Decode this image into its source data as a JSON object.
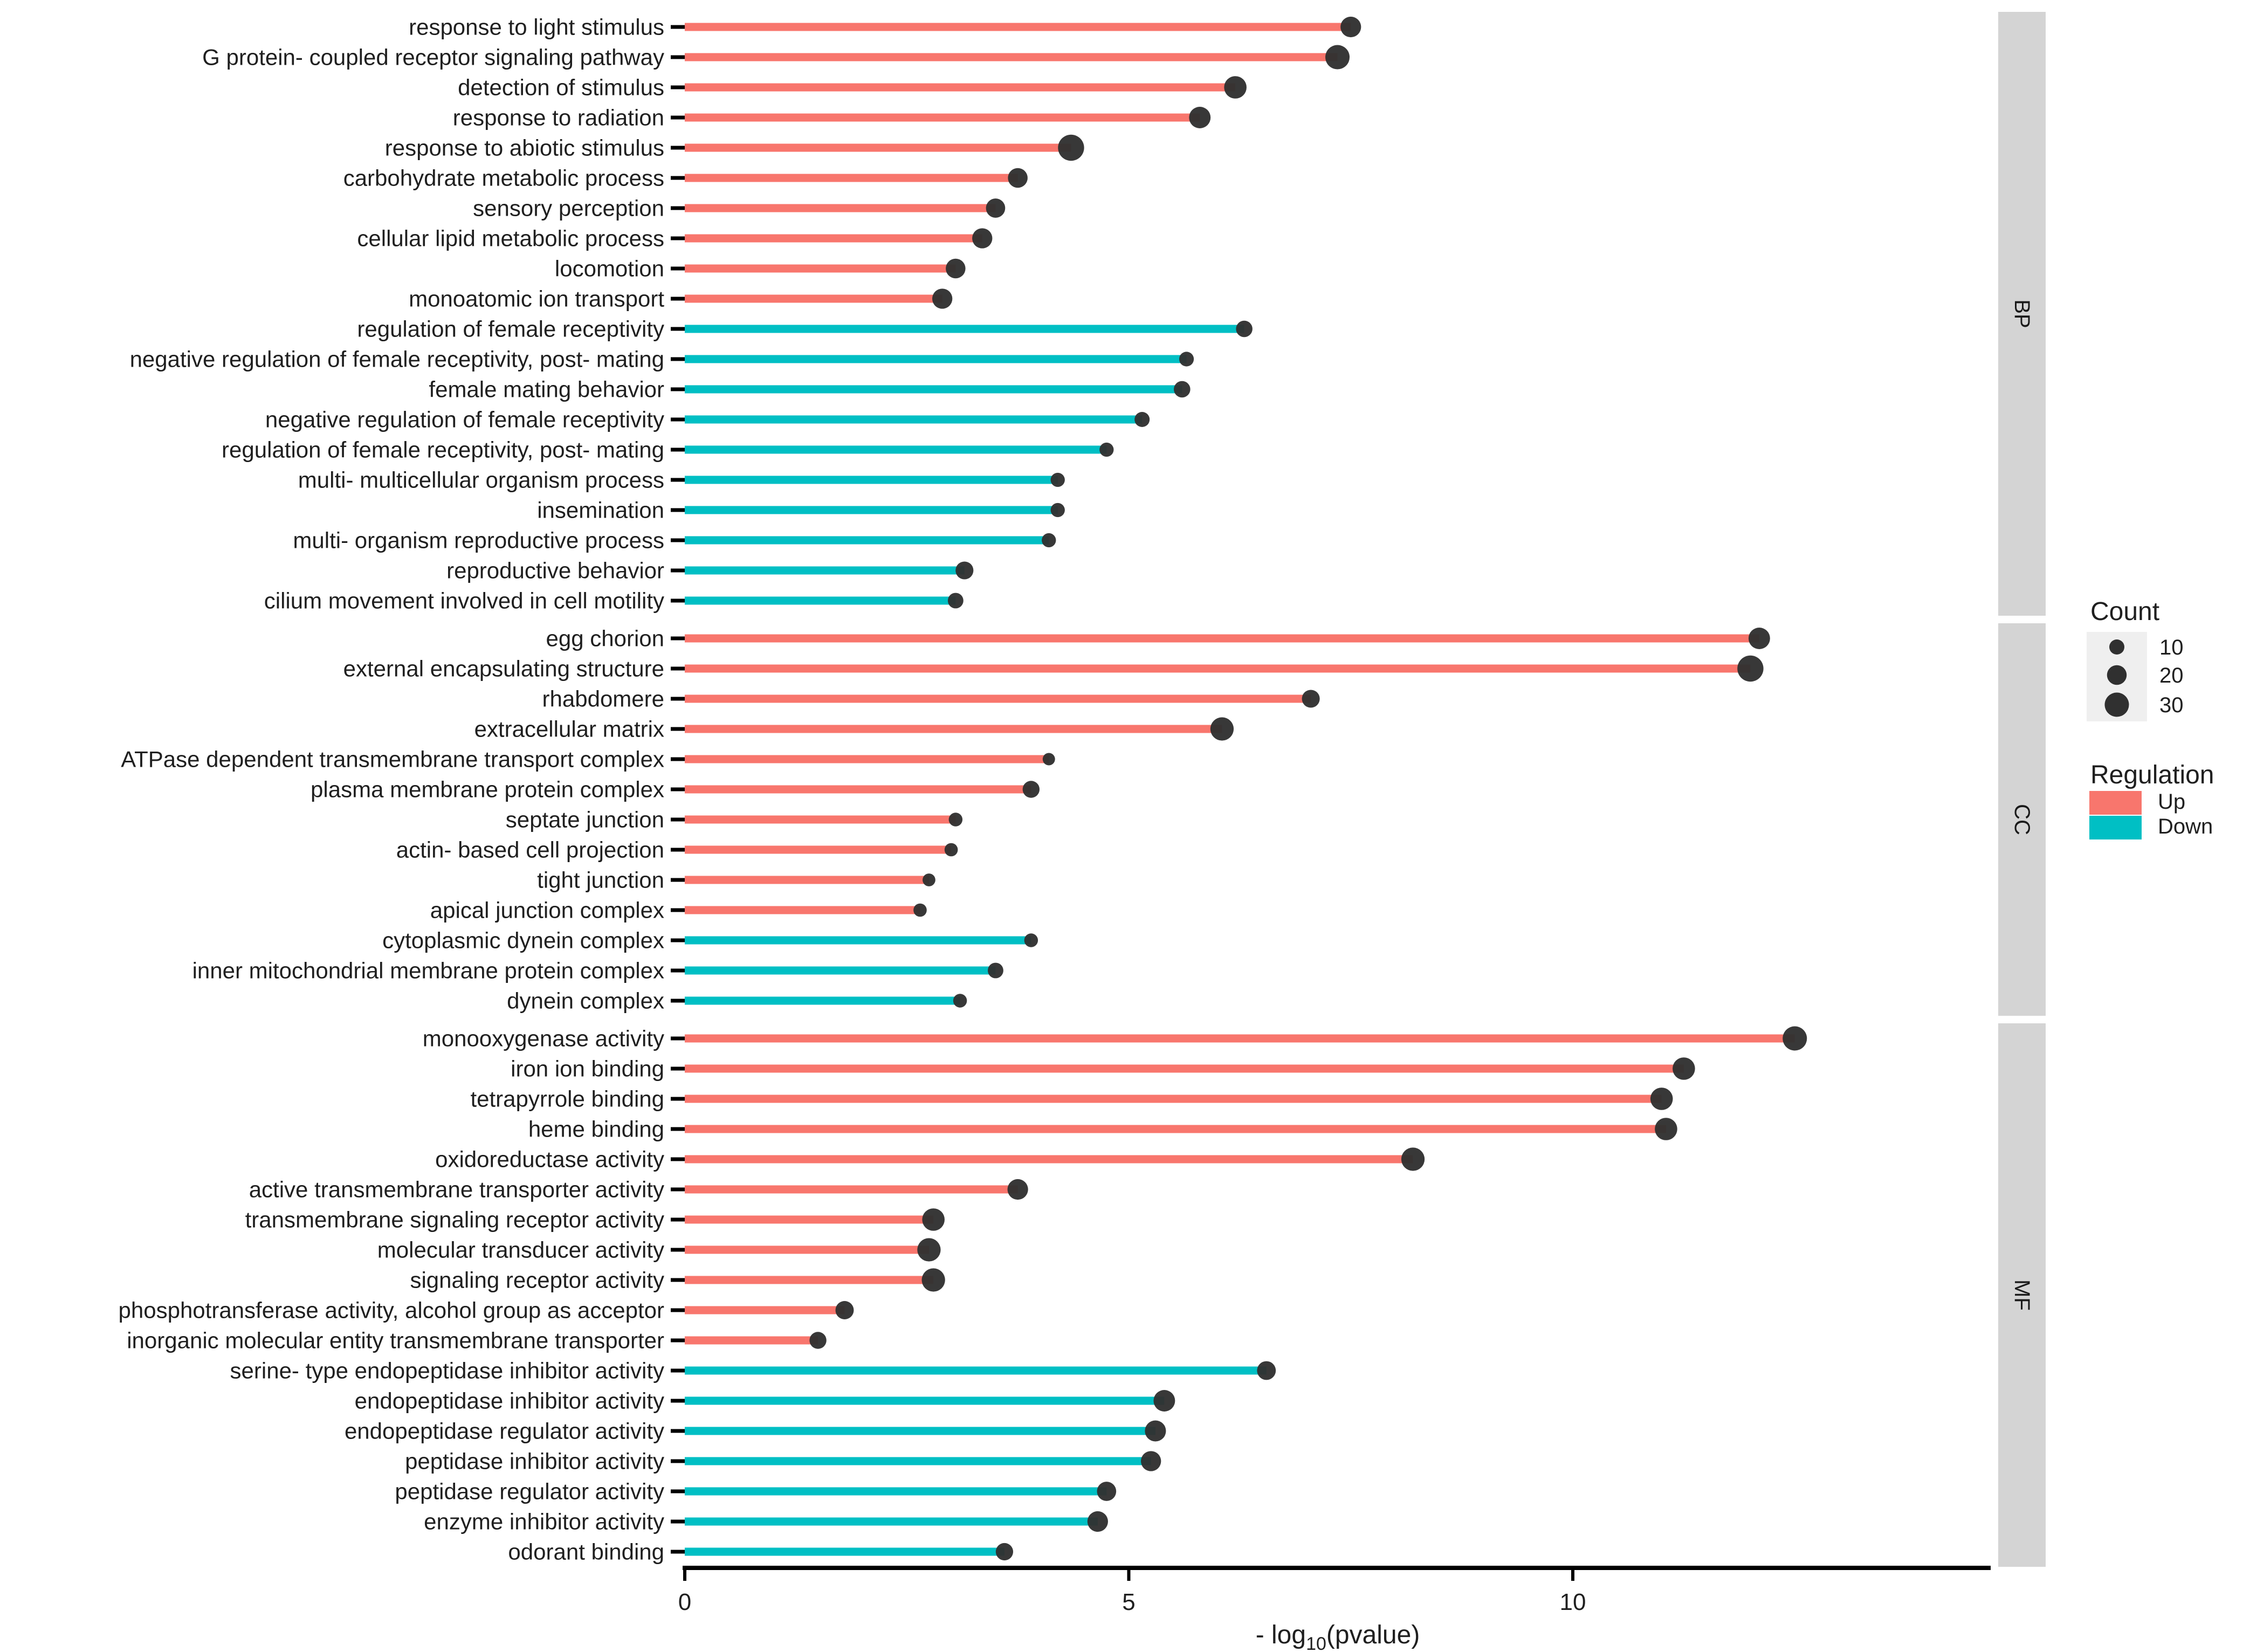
{
  "chart_data": {
    "type": "bar",
    "subtype": "horizontal-lollipop",
    "title": "",
    "xlabel_prefix": "- log",
    "xlabel_sub": "10",
    "xlabel_suffix": "(pvalue)",
    "xlim": [
      0,
      14.7
    ],
    "x_ticks": [
      0,
      5,
      10
    ],
    "grid": false,
    "legend_position": "right",
    "facets": [
      {
        "label": "BP",
        "rows": [
          {
            "label": "response to light stimulus",
            "value": 7.5,
            "count": 22,
            "regulation": "Up"
          },
          {
            "label": "G protein- coupled receptor signaling pathway",
            "value": 7.35,
            "count": 30,
            "regulation": "Up"
          },
          {
            "label": "detection of stimulus",
            "value": 6.2,
            "count": 26,
            "regulation": "Up"
          },
          {
            "label": "response to radiation",
            "value": 5.8,
            "count": 24,
            "regulation": "Up"
          },
          {
            "label": "response to abiotic stimulus",
            "value": 4.35,
            "count": 34,
            "regulation": "Up"
          },
          {
            "label": "carbohydrate metabolic process",
            "value": 3.75,
            "count": 20,
            "regulation": "Up"
          },
          {
            "label": "sensory perception",
            "value": 3.5,
            "count": 19,
            "regulation": "Up"
          },
          {
            "label": "cellular lipid metabolic process",
            "value": 3.35,
            "count": 21,
            "regulation": "Up"
          },
          {
            "label": "locomotion",
            "value": 3.05,
            "count": 20,
            "regulation": "Up"
          },
          {
            "label": "monoatomic ion transport",
            "value": 2.9,
            "count": 21,
            "regulation": "Up"
          },
          {
            "label": "regulation of female receptivity",
            "value": 6.3,
            "count": 13,
            "regulation": "Down"
          },
          {
            "label": "negative regulation of female receptivity, post- mating",
            "value": 5.65,
            "count": 9,
            "regulation": "Down"
          },
          {
            "label": "female mating behavior",
            "value": 5.6,
            "count": 13,
            "regulation": "Down"
          },
          {
            "label": "negative regulation of female receptivity",
            "value": 5.15,
            "count": 10,
            "regulation": "Down"
          },
          {
            "label": "regulation of female receptivity, post- mating",
            "value": 4.75,
            "count": 8,
            "regulation": "Down"
          },
          {
            "label": "multi- multicellular organism process",
            "value": 4.2,
            "count": 8,
            "regulation": "Down"
          },
          {
            "label": "insemination",
            "value": 4.2,
            "count": 8,
            "regulation": "Down"
          },
          {
            "label": "multi- organism reproductive process",
            "value": 4.1,
            "count": 8,
            "regulation": "Down"
          },
          {
            "label": "reproductive behavior",
            "value": 3.15,
            "count": 16,
            "regulation": "Down"
          },
          {
            "label": "cilium movement involved in cell motility",
            "value": 3.05,
            "count": 11,
            "regulation": "Down"
          }
        ]
      },
      {
        "label": "CC",
        "rows": [
          {
            "label": "egg chorion",
            "value": 12.1,
            "count": 24,
            "regulation": "Up"
          },
          {
            "label": "external encapsulating structure",
            "value": 12.0,
            "count": 34,
            "regulation": "Up"
          },
          {
            "label": "rhabdomere",
            "value": 7.05,
            "count": 16,
            "regulation": "Up"
          },
          {
            "label": "extracellular matrix",
            "value": 6.05,
            "count": 28,
            "regulation": "Up"
          },
          {
            "label": "ATPase dependent transmembrane transport complex",
            "value": 4.1,
            "count": 4,
            "regulation": "Up"
          },
          {
            "label": "plasma membrane protein complex",
            "value": 3.9,
            "count": 14,
            "regulation": "Up"
          },
          {
            "label": "septate junction",
            "value": 3.05,
            "count": 7,
            "regulation": "Up"
          },
          {
            "label": "actin- based cell projection",
            "value": 3.0,
            "count": 6,
            "regulation": "Up"
          },
          {
            "label": "tight junction",
            "value": 2.75,
            "count": 5,
            "regulation": "Up"
          },
          {
            "label": "apical junction complex",
            "value": 2.65,
            "count": 6,
            "regulation": "Up"
          },
          {
            "label": "cytoplasmic dynein complex",
            "value": 3.9,
            "count": 7,
            "regulation": "Down"
          },
          {
            "label": "inner mitochondrial membrane protein complex",
            "value": 3.5,
            "count": 11,
            "regulation": "Down"
          },
          {
            "label": "dynein complex",
            "value": 3.1,
            "count": 7,
            "regulation": "Down"
          }
        ]
      },
      {
        "label": "MF",
        "rows": [
          {
            "label": "monooxygenase activity",
            "value": 12.5,
            "count": 30,
            "regulation": "Up"
          },
          {
            "label": "iron ion binding",
            "value": 11.25,
            "count": 26,
            "regulation": "Up"
          },
          {
            "label": "tetrapyrrole binding",
            "value": 11.0,
            "count": 26,
            "regulation": "Up"
          },
          {
            "label": "heme binding",
            "value": 11.05,
            "count": 26,
            "regulation": "Up"
          },
          {
            "label": "oxidoreductase activity",
            "value": 8.2,
            "count": 28,
            "regulation": "Up"
          },
          {
            "label": "active transmembrane transporter activity",
            "value": 3.75,
            "count": 22,
            "regulation": "Up"
          },
          {
            "label": "transmembrane signaling receptor activity",
            "value": 2.8,
            "count": 26,
            "regulation": "Up"
          },
          {
            "label": "molecular transducer activity",
            "value": 2.75,
            "count": 28,
            "regulation": "Up"
          },
          {
            "label": "signaling receptor activity",
            "value": 2.8,
            "count": 28,
            "regulation": "Up"
          },
          {
            "label": "phosphotransferase activity, alcohol group as acceptor",
            "value": 1.8,
            "count": 17,
            "regulation": "Up"
          },
          {
            "label": "inorganic molecular entity transmembrane transporter",
            "value": 1.5,
            "count": 14,
            "regulation": "Up"
          },
          {
            "label": "serine- type endopeptidase inhibitor activity",
            "value": 6.55,
            "count": 18,
            "regulation": "Down"
          },
          {
            "label": "endopeptidase inhibitor activity",
            "value": 5.4,
            "count": 24,
            "regulation": "Down"
          },
          {
            "label": "endopeptidase regulator activity",
            "value": 5.3,
            "count": 23,
            "regulation": "Down"
          },
          {
            "label": "peptidase inhibitor activity",
            "value": 5.25,
            "count": 21,
            "regulation": "Down"
          },
          {
            "label": "peptidase regulator activity",
            "value": 4.75,
            "count": 19,
            "regulation": "Down"
          },
          {
            "label": "enzyme inhibitor activity",
            "value": 4.65,
            "count": 22,
            "regulation": "Down"
          },
          {
            "label": "odorant binding",
            "value": 3.6,
            "count": 15,
            "regulation": "Down"
          }
        ]
      }
    ],
    "legend": {
      "count_title": "Count",
      "count_items": [
        10,
        20,
        30
      ],
      "regulation_title": "Regulation",
      "regulation_items": [
        {
          "label": "Up",
          "color": "#F8766D"
        },
        {
          "label": "Down",
          "color": "#00BFC4"
        }
      ]
    }
  },
  "colors": {
    "up": "#F8766D",
    "down": "#00BFC4",
    "dot": "#303030",
    "axis": "#000000",
    "text": "#1F1F1F",
    "strip_bg": "#D4D4D4",
    "strip_text": "#1A1A1A",
    "legend_key_bg": "#EFEFEF",
    "background": "#FFFFFF"
  }
}
